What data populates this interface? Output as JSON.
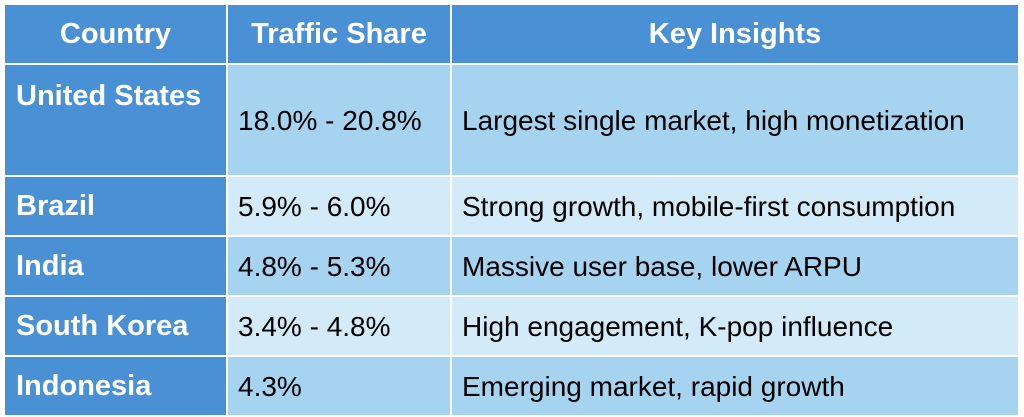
{
  "table": {
    "headers": {
      "country": "Country",
      "share": "Traffic Share",
      "insights": "Key Insights"
    },
    "rows": [
      {
        "country": "United States",
        "share": "18.0% - 20.8%",
        "insight": "Largest single market, high monetization"
      },
      {
        "country": "Brazil",
        "share": "5.9% - 6.0%",
        "insight": "Strong growth, mobile-first consumption"
      },
      {
        "country": "India",
        "share": "4.8% - 5.3%",
        "insight": "Massive user base, lower ARPU"
      },
      {
        "country": "South Korea",
        "share": "3.4% - 4.8%",
        "insight": "High engagement, K-pop influence"
      },
      {
        "country": "Indonesia",
        "share": "4.3%",
        "insight": "Emerging market, rapid growth"
      }
    ]
  },
  "colors": {
    "header_bg": "#4a90d4",
    "row_light": "#a6d3f0",
    "row_pale": "#d3eaf8",
    "header_text": "#ffffff"
  }
}
